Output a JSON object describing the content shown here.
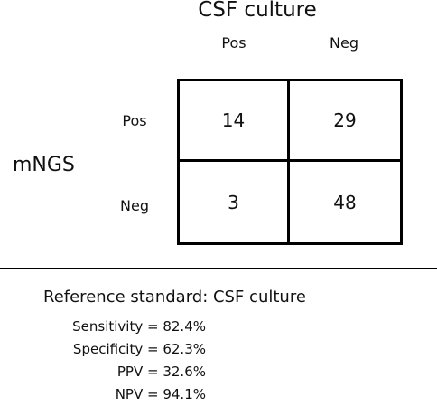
{
  "table": {
    "column_title": "CSF culture",
    "column_headers": [
      "Pos",
      "Neg"
    ],
    "row_title": "mNGS",
    "row_headers": [
      "Pos",
      "Neg"
    ],
    "cells": [
      [
        "14",
        "29"
      ],
      [
        "3",
        "48"
      ]
    ]
  },
  "reference": {
    "title": "Reference standard: CSF culture",
    "metrics": [
      "Sensitivity = 82.4%",
      "Specificity = 62.3%",
      "PPV = 32.6%",
      "NPV = 94.1%"
    ]
  }
}
